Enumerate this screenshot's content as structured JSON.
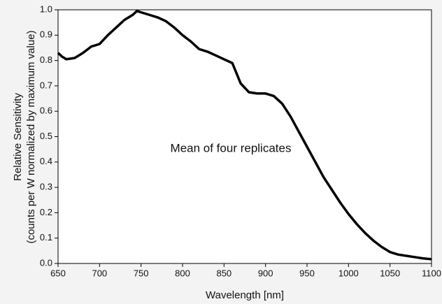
{
  "chart_data": {
    "type": "line",
    "xlabel": "Wavelength [nm]",
    "ylabel": [
      "Relative Sensitivity",
      "(counts per W normalized by maximum value)"
    ],
    "annotation": "Mean of four replicates",
    "x": [
      650,
      655,
      660,
      670,
      680,
      690,
      700,
      710,
      720,
      730,
      740,
      745,
      750,
      760,
      770,
      780,
      790,
      800,
      810,
      820,
      830,
      840,
      850,
      860,
      865,
      870,
      880,
      890,
      900,
      910,
      920,
      930,
      940,
      950,
      960,
      970,
      980,
      990,
      1000,
      1010,
      1020,
      1030,
      1040,
      1050,
      1060,
      1070,
      1080,
      1090,
      1100
    ],
    "values": [
      0.83,
      0.815,
      0.805,
      0.81,
      0.83,
      0.855,
      0.865,
      0.9,
      0.93,
      0.96,
      0.98,
      0.995,
      0.99,
      0.98,
      0.97,
      0.955,
      0.93,
      0.9,
      0.875,
      0.845,
      0.835,
      0.82,
      0.805,
      0.79,
      0.75,
      0.71,
      0.675,
      0.67,
      0.67,
      0.66,
      0.63,
      0.58,
      0.52,
      0.46,
      0.4,
      0.34,
      0.29,
      0.24,
      0.195,
      0.155,
      0.12,
      0.09,
      0.065,
      0.045,
      0.035,
      0.03,
      0.025,
      0.02,
      0.017
    ],
    "color": "#000000",
    "xlim": [
      650,
      1100
    ],
    "xticks": [
      650,
      700,
      750,
      800,
      850,
      900,
      950,
      1000,
      1050,
      1100
    ],
    "ylim": [
      0,
      1
    ],
    "yticks": [
      {
        "value": 0,
        "label": "0.0"
      },
      0.1,
      0.2,
      0.3,
      0.4,
      0.5,
      0.6,
      0.7,
      0.8,
      0.9,
      {
        "value": 1,
        "label": "1.0"
      }
    ],
    "grid": false
  }
}
